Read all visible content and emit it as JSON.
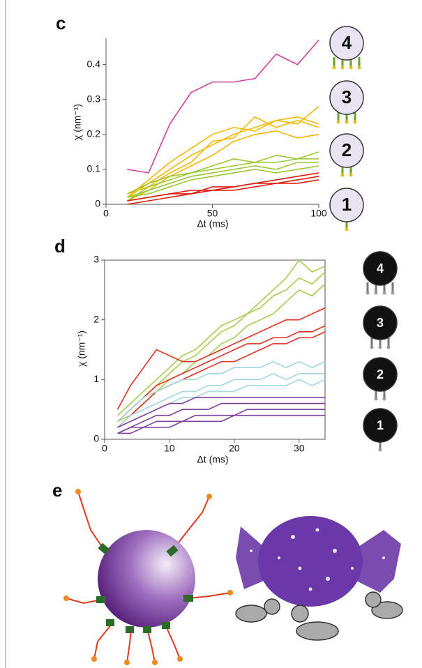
{
  "chart_data": [
    {
      "type": "line",
      "panel_label": "c",
      "xlabel": "Δt (ms)",
      "ylabel": "χ (nm⁻¹)",
      "frame": false,
      "x": [
        10,
        20,
        30,
        40,
        50,
        60,
        70,
        80,
        90,
        100
      ],
      "xlim": [
        0,
        100
      ],
      "xticks": [
        0,
        50,
        100
      ],
      "ylim": [
        0,
        0.475
      ],
      "yticks": [
        0,
        0.1,
        0.2,
        0.3,
        0.4
      ],
      "icon_labels": [
        "4",
        "3",
        "2",
        "1"
      ],
      "series": [
        {
          "color": "#d0409a",
          "values": [
            0.1,
            0.09,
            0.23,
            0.32,
            0.35,
            0.35,
            0.36,
            0.43,
            0.4,
            0.47
          ]
        },
        {
          "color": "#f5b800",
          "values": [
            0.02,
            0.06,
            0.1,
            0.14,
            0.17,
            0.2,
            0.22,
            0.24,
            0.23,
            0.28
          ]
        },
        {
          "color": "#f5b800",
          "values": [
            0.03,
            0.05,
            0.09,
            0.12,
            0.18,
            0.19,
            0.25,
            0.22,
            0.24,
            0.22
          ]
        },
        {
          "color": "#f5b800",
          "values": [
            0.01,
            0.04,
            0.08,
            0.11,
            0.14,
            0.18,
            0.2,
            0.21,
            0.19,
            0.2
          ]
        },
        {
          "color": "#f5b800",
          "values": [
            0.02,
            0.07,
            0.12,
            0.16,
            0.2,
            0.22,
            0.21,
            0.24,
            0.25,
            0.23
          ]
        },
        {
          "color": "#9ac832",
          "values": [
            0.03,
            0.06,
            0.08,
            0.09,
            0.1,
            0.11,
            0.12,
            0.12,
            0.13,
            0.15
          ]
        },
        {
          "color": "#9ac832",
          "values": [
            0.02,
            0.04,
            0.06,
            0.08,
            0.09,
            0.1,
            0.11,
            0.1,
            0.12,
            0.12
          ]
        },
        {
          "color": "#9ac832",
          "values": [
            0.01,
            0.05,
            0.07,
            0.09,
            0.11,
            0.13,
            0.12,
            0.14,
            0.13,
            0.13
          ]
        },
        {
          "color": "#9ac832",
          "values": [
            0.02,
            0.03,
            0.05,
            0.07,
            0.08,
            0.09,
            0.1,
            0.09,
            0.1,
            0.11
          ]
        },
        {
          "color": "#e02010",
          "values": [
            0.01,
            0.02,
            0.03,
            0.04,
            0.04,
            0.05,
            0.06,
            0.06,
            0.07,
            0.08
          ]
        },
        {
          "color": "#e02010",
          "values": [
            0.0,
            0.01,
            0.02,
            0.03,
            0.04,
            0.04,
            0.05,
            0.06,
            0.06,
            0.07
          ]
        },
        {
          "color": "#e02010",
          "values": [
            0.01,
            0.02,
            0.03,
            0.03,
            0.05,
            0.05,
            0.06,
            0.07,
            0.08,
            0.09
          ]
        }
      ]
    },
    {
      "type": "line",
      "panel_label": "d",
      "xlabel": "Δt (ms)",
      "ylabel": "χ (nm⁻¹)",
      "frame": true,
      "x": [
        2,
        4,
        6,
        8,
        10,
        12,
        14,
        16,
        18,
        20,
        22,
        24,
        26,
        28,
        30,
        32,
        34
      ],
      "xlim": [
        0,
        34
      ],
      "xticks": [
        0,
        10,
        20,
        30
      ],
      "ylim": [
        0,
        3
      ],
      "yticks": [
        0,
        1,
        2,
        3
      ],
      "icon_labels": [
        "4",
        "3",
        "2",
        "1"
      ],
      "series": [
        {
          "color": "#a8cc50",
          "values": [
            0.4,
            0.6,
            0.8,
            1.0,
            1.2,
            1.4,
            1.5,
            1.7,
            1.9,
            2.0,
            2.1,
            2.3,
            2.5,
            2.7,
            3.0,
            2.8,
            2.9
          ]
        },
        {
          "color": "#a8cc50",
          "values": [
            0.3,
            0.5,
            0.7,
            0.9,
            1.1,
            1.3,
            1.4,
            1.6,
            1.8,
            1.9,
            2.1,
            2.2,
            2.4,
            2.5,
            2.7,
            2.6,
            2.8
          ]
        },
        {
          "color": "#a8cc50",
          "values": [
            0.3,
            0.4,
            0.6,
            0.8,
            1.0,
            1.1,
            1.3,
            1.4,
            1.6,
            1.7,
            1.9,
            2.0,
            2.1,
            2.3,
            2.5,
            2.4,
            2.6
          ]
        },
        {
          "color": "#e03020",
          "values": [
            0.5,
            0.9,
            1.2,
            1.5,
            1.4,
            1.3,
            1.3,
            1.4,
            1.5,
            1.6,
            1.7,
            1.8,
            1.9,
            2.0,
            2.0,
            2.1,
            2.2
          ]
        },
        {
          "color": "#e03020",
          "values": [
            0.3,
            0.5,
            0.7,
            0.9,
            1.0,
            1.1,
            1.2,
            1.3,
            1.4,
            1.5,
            1.6,
            1.6,
            1.7,
            1.7,
            1.8,
            1.8,
            1.9
          ]
        },
        {
          "color": "#e03020",
          "values": [
            0.2,
            0.4,
            0.6,
            0.8,
            0.9,
            1.0,
            1.1,
            1.2,
            1.3,
            1.3,
            1.4,
            1.5,
            1.6,
            1.6,
            1.7,
            1.7,
            1.8
          ]
        },
        {
          "color": "#a0d8e0",
          "values": [
            0.3,
            0.5,
            0.7,
            0.8,
            0.9,
            1.0,
            1.0,
            1.1,
            1.1,
            1.2,
            1.2,
            1.2,
            1.3,
            1.2,
            1.3,
            1.2,
            1.3
          ]
        },
        {
          "color": "#a0d8e0",
          "values": [
            0.2,
            0.4,
            0.5,
            0.6,
            0.7,
            0.8,
            0.8,
            0.9,
            0.9,
            1.0,
            1.0,
            1.0,
            1.1,
            1.0,
            1.1,
            1.1,
            1.1
          ]
        },
        {
          "color": "#a0d8e0",
          "values": [
            0.2,
            0.3,
            0.4,
            0.5,
            0.6,
            0.7,
            0.7,
            0.8,
            0.8,
            0.8,
            0.9,
            0.9,
            0.9,
            0.9,
            1.0,
            0.9,
            1.0
          ]
        },
        {
          "color": "#8040a0",
          "values": [
            0.2,
            0.3,
            0.4,
            0.5,
            0.6,
            0.6,
            0.7,
            0.7,
            0.7,
            0.7,
            0.7,
            0.7,
            0.7,
            0.7,
            0.7,
            0.7,
            0.7
          ]
        },
        {
          "color": "#8040a0",
          "values": [
            0.1,
            0.2,
            0.3,
            0.4,
            0.4,
            0.5,
            0.5,
            0.5,
            0.6,
            0.6,
            0.6,
            0.6,
            0.6,
            0.6,
            0.6,
            0.6,
            0.6
          ]
        },
        {
          "color": "#8040a0",
          "values": [
            0.1,
            0.2,
            0.2,
            0.3,
            0.3,
            0.3,
            0.4,
            0.4,
            0.4,
            0.4,
            0.5,
            0.5,
            0.5,
            0.5,
            0.5,
            0.5,
            0.5
          ]
        },
        {
          "color": "#8040a0",
          "values": [
            0.1,
            0.1,
            0.2,
            0.2,
            0.2,
            0.3,
            0.3,
            0.3,
            0.3,
            0.4,
            0.4,
            0.4,
            0.4,
            0.4,
            0.4,
            0.4,
            0.4
          ]
        }
      ]
    }
  ],
  "illustration": {
    "panel_label": "e"
  }
}
